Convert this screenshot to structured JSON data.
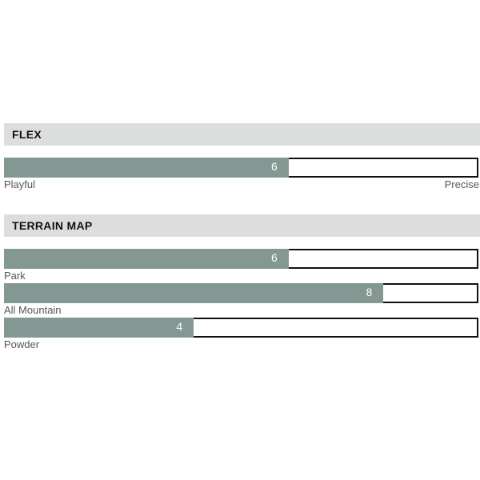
{
  "chart_data": [
    {
      "type": "bar",
      "title": "FLEX",
      "scale_max": 10,
      "categories": [
        ""
      ],
      "values": [
        6
      ],
      "min_label": "Playful",
      "max_label": "Precise",
      "fill_color": "#849893"
    },
    {
      "type": "bar",
      "title": "TERRAIN MAP",
      "scale_max": 10,
      "categories": [
        "Park",
        "All Mountain",
        "Powder"
      ],
      "values": [
        6,
        8,
        4
      ],
      "fill_color": "#849893"
    }
  ]
}
